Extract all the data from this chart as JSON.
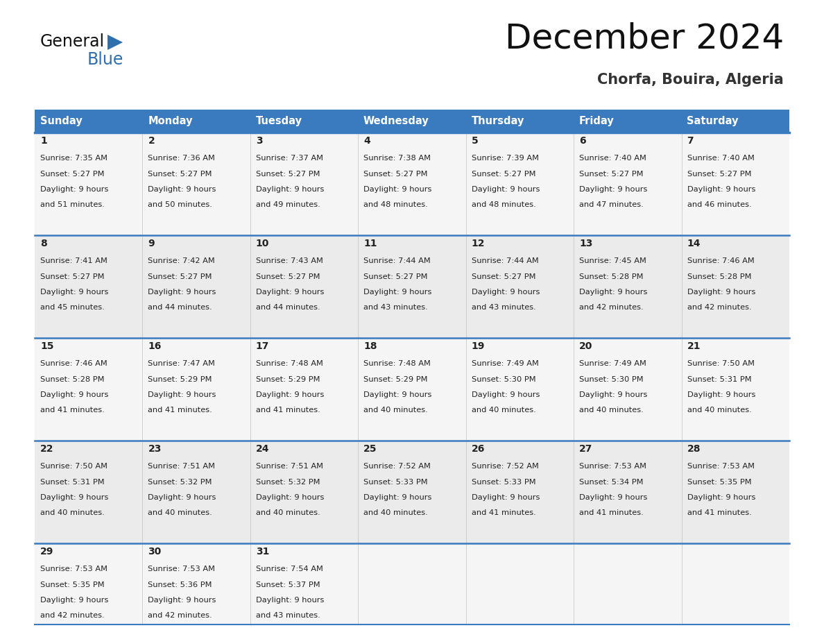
{
  "title": "December 2024",
  "subtitle": "Chorfa, Bouira, Algeria",
  "header_color": "#3a7bbf",
  "header_text_color": "#ffffff",
  "border_color": "#3a7bbf",
  "text_color": "#222222",
  "row_bg_odd": "#f5f5f5",
  "row_bg_even": "#ebebeb",
  "days_of_week": [
    "Sunday",
    "Monday",
    "Tuesday",
    "Wednesday",
    "Thursday",
    "Friday",
    "Saturday"
  ],
  "calendar_data": [
    [
      {
        "day": 1,
        "sunrise": "7:35 AM",
        "sunset": "5:27 PM",
        "daylight_min": "51"
      },
      {
        "day": 2,
        "sunrise": "7:36 AM",
        "sunset": "5:27 PM",
        "daylight_min": "50"
      },
      {
        "day": 3,
        "sunrise": "7:37 AM",
        "sunset": "5:27 PM",
        "daylight_min": "49"
      },
      {
        "day": 4,
        "sunrise": "7:38 AM",
        "sunset": "5:27 PM",
        "daylight_min": "48"
      },
      {
        "day": 5,
        "sunrise": "7:39 AM",
        "sunset": "5:27 PM",
        "daylight_min": "48"
      },
      {
        "day": 6,
        "sunrise": "7:40 AM",
        "sunset": "5:27 PM",
        "daylight_min": "47"
      },
      {
        "day": 7,
        "sunrise": "7:40 AM",
        "sunset": "5:27 PM",
        "daylight_min": "46"
      }
    ],
    [
      {
        "day": 8,
        "sunrise": "7:41 AM",
        "sunset": "5:27 PM",
        "daylight_min": "45"
      },
      {
        "day": 9,
        "sunrise": "7:42 AM",
        "sunset": "5:27 PM",
        "daylight_min": "44"
      },
      {
        "day": 10,
        "sunrise": "7:43 AM",
        "sunset": "5:27 PM",
        "daylight_min": "44"
      },
      {
        "day": 11,
        "sunrise": "7:44 AM",
        "sunset": "5:27 PM",
        "daylight_min": "43"
      },
      {
        "day": 12,
        "sunrise": "7:44 AM",
        "sunset": "5:27 PM",
        "daylight_min": "43"
      },
      {
        "day": 13,
        "sunrise": "7:45 AM",
        "sunset": "5:28 PM",
        "daylight_min": "42"
      },
      {
        "day": 14,
        "sunrise": "7:46 AM",
        "sunset": "5:28 PM",
        "daylight_min": "42"
      }
    ],
    [
      {
        "day": 15,
        "sunrise": "7:46 AM",
        "sunset": "5:28 PM",
        "daylight_min": "41"
      },
      {
        "day": 16,
        "sunrise": "7:47 AM",
        "sunset": "5:29 PM",
        "daylight_min": "41"
      },
      {
        "day": 17,
        "sunrise": "7:48 AM",
        "sunset": "5:29 PM",
        "daylight_min": "41"
      },
      {
        "day": 18,
        "sunrise": "7:48 AM",
        "sunset": "5:29 PM",
        "daylight_min": "40"
      },
      {
        "day": 19,
        "sunrise": "7:49 AM",
        "sunset": "5:30 PM",
        "daylight_min": "40"
      },
      {
        "day": 20,
        "sunrise": "7:49 AM",
        "sunset": "5:30 PM",
        "daylight_min": "40"
      },
      {
        "day": 21,
        "sunrise": "7:50 AM",
        "sunset": "5:31 PM",
        "daylight_min": "40"
      }
    ],
    [
      {
        "day": 22,
        "sunrise": "7:50 AM",
        "sunset": "5:31 PM",
        "daylight_min": "40"
      },
      {
        "day": 23,
        "sunrise": "7:51 AM",
        "sunset": "5:32 PM",
        "daylight_min": "40"
      },
      {
        "day": 24,
        "sunrise": "7:51 AM",
        "sunset": "5:32 PM",
        "daylight_min": "40"
      },
      {
        "day": 25,
        "sunrise": "7:52 AM",
        "sunset": "5:33 PM",
        "daylight_min": "40"
      },
      {
        "day": 26,
        "sunrise": "7:52 AM",
        "sunset": "5:33 PM",
        "daylight_min": "41"
      },
      {
        "day": 27,
        "sunrise": "7:53 AM",
        "sunset": "5:34 PM",
        "daylight_min": "41"
      },
      {
        "day": 28,
        "sunrise": "7:53 AM",
        "sunset": "5:35 PM",
        "daylight_min": "41"
      }
    ],
    [
      {
        "day": 29,
        "sunrise": "7:53 AM",
        "sunset": "5:35 PM",
        "daylight_min": "42"
      },
      {
        "day": 30,
        "sunrise": "7:53 AM",
        "sunset": "5:36 PM",
        "daylight_min": "42"
      },
      {
        "day": 31,
        "sunrise": "7:54 AM",
        "sunset": "5:37 PM",
        "daylight_min": "43"
      },
      null,
      null,
      null,
      null
    ]
  ],
  "logo_general_color": "#111111",
  "logo_blue_color": "#2e6fad"
}
